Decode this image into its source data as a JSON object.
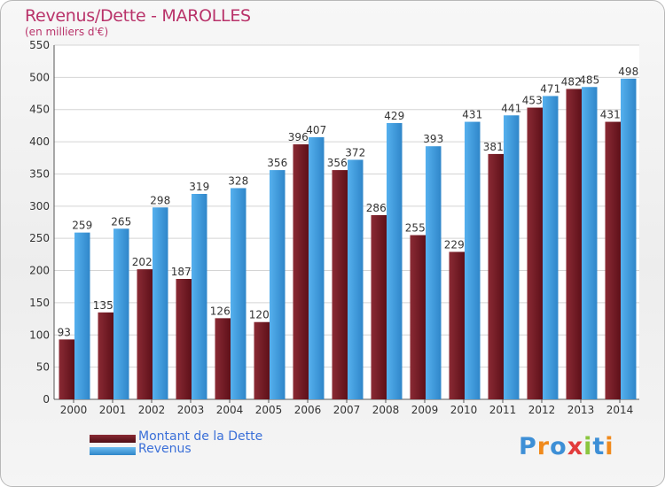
{
  "chart_data": {
    "type": "bar",
    "title": "Revenus/Dette - MAROLLES",
    "subtitle": "(en milliers d'€)",
    "xlabel": "",
    "ylabel": "",
    "ylim": [
      0,
      550
    ],
    "yticks": [
      0,
      50,
      100,
      150,
      200,
      250,
      300,
      350,
      400,
      450,
      500,
      550
    ],
    "grid": true,
    "categories": [
      "2000",
      "2001",
      "2002",
      "2003",
      "2004",
      "2005",
      "2006",
      "2007",
      "2008",
      "2009",
      "2010",
      "2011",
      "2012",
      "2013",
      "2014"
    ],
    "series": [
      {
        "name": "Montant de la Dette",
        "color": "#7a1f2b",
        "values": [
          93,
          135,
          202,
          187,
          126,
          120,
          396,
          356,
          286,
          255,
          229,
          381,
          453,
          482,
          431
        ],
        "labels": [
          "93",
          "135",
          "202",
          "187",
          "126",
          "120",
          "396",
          "356",
          "286",
          "255",
          "229",
          "381",
          "453",
          "482",
          "431"
        ]
      },
      {
        "name": "Revenus",
        "color": "#3f9ee0",
        "values": [
          259,
          265,
          298,
          319,
          328,
          356,
          407,
          372,
          429,
          393,
          431,
          441,
          471,
          485,
          498
        ],
        "labels": [
          "259",
          "265",
          "298",
          "319",
          "328",
          "356",
          "407",
          "372",
          "429",
          "393",
          "431",
          "441",
          "471",
          "485",
          "498"
        ]
      }
    ],
    "legend_position": "bottom-left"
  },
  "logo": {
    "letters": [
      "P",
      "r",
      "o",
      "x",
      "i",
      "t",
      "i"
    ],
    "colors": [
      "#3d8fd6",
      "#f08a1c",
      "#3d8fd6",
      "#e23b3b",
      "#8bc63f",
      "#3d8fd6",
      "#f08a1c"
    ]
  }
}
